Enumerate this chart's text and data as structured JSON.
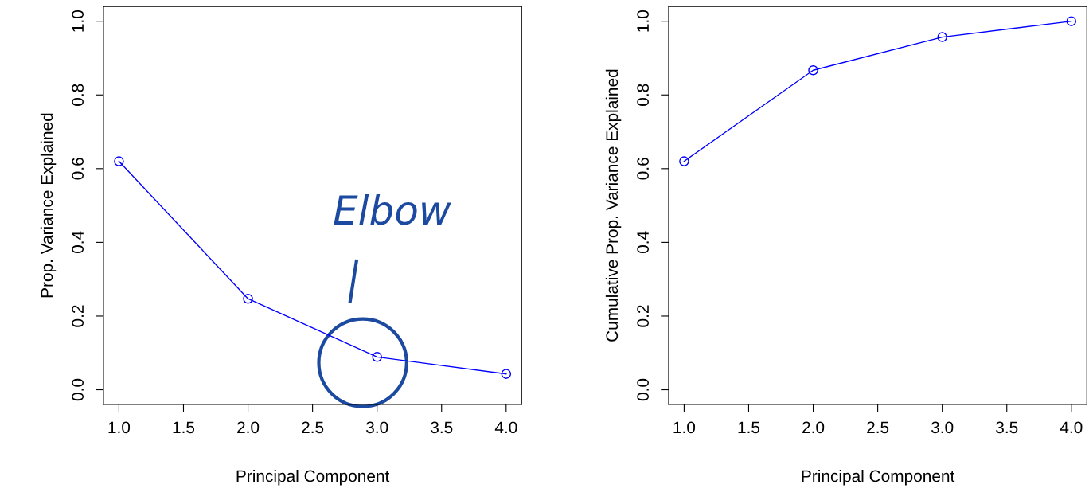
{
  "chart_data": [
    {
      "type": "line",
      "xlabel": "Principal Component",
      "ylabel": "Prop. Variance Explained",
      "x": [
        1,
        2,
        3,
        4
      ],
      "series": [
        {
          "color": "#0000ff",
          "values": [
            0.62,
            0.247,
            0.089,
            0.043
          ]
        }
      ],
      "marker": "circle",
      "line_style": "solid",
      "grid": false,
      "legend": false,
      "xlim": [
        0.88,
        4.12
      ],
      "ylim": [
        -0.04,
        1.04
      ],
      "xticks": [
        {
          "value": 1,
          "label": "1.0"
        },
        {
          "value": 1.5,
          "label": "1.5"
        },
        {
          "value": 2,
          "label": "2.0"
        },
        {
          "value": 2.5,
          "label": "2.5"
        },
        {
          "value": 3,
          "label": "3.0"
        },
        {
          "value": 3.5,
          "label": "3.5"
        },
        {
          "value": 4,
          "label": "4.0"
        }
      ],
      "yticks": [
        {
          "value": 0,
          "label": "0.0"
        },
        {
          "value": 0.2,
          "label": "0.2"
        },
        {
          "value": 0.4,
          "label": "0.4"
        },
        {
          "value": 0.6,
          "label": "0.6"
        },
        {
          "value": 0.8,
          "label": "0.8"
        },
        {
          "value": 1,
          "label": "1.0"
        }
      ],
      "annotations": [
        "Elbow"
      ]
    },
    {
      "type": "line",
      "xlabel": "Principal Component",
      "ylabel": "Cumulative Prop. Variance Explained",
      "x": [
        1,
        2,
        3,
        4
      ],
      "series": [
        {
          "color": "#0000ff",
          "values": [
            0.62,
            0.867,
            0.957,
            1.0
          ]
        }
      ],
      "marker": "circle",
      "line_style": "solid",
      "grid": false,
      "legend": false,
      "xlim": [
        0.88,
        4.12
      ],
      "ylim": [
        -0.04,
        1.04
      ],
      "xticks": [
        {
          "value": 1,
          "label": "1.0"
        },
        {
          "value": 1.5,
          "label": "1.5"
        },
        {
          "value": 2,
          "label": "2.0"
        },
        {
          "value": 2.5,
          "label": "2.5"
        },
        {
          "value": 3,
          "label": "3.0"
        },
        {
          "value": 3.5,
          "label": "3.5"
        },
        {
          "value": 4,
          "label": "4.0"
        }
      ],
      "yticks": [
        {
          "value": 0,
          "label": "0.0"
        },
        {
          "value": 0.2,
          "label": "0.2"
        },
        {
          "value": 0.4,
          "label": "0.4"
        },
        {
          "value": 0.6,
          "label": "0.6"
        },
        {
          "value": 0.8,
          "label": "0.8"
        },
        {
          "value": 1,
          "label": "1.0"
        }
      ]
    }
  ]
}
